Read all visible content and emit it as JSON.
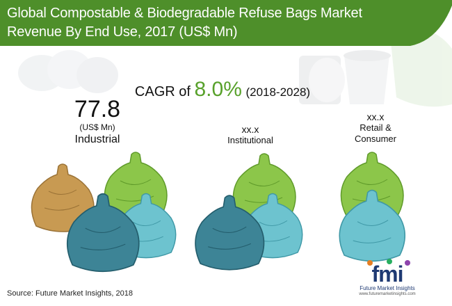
{
  "chart_data": {
    "type": "infographic",
    "title": "Global Compostable & Biodegradable Refuse Bags Market Revenue By End Use, 2017 (US$ Mn)",
    "cagr": {
      "prefix": "CAGR of",
      "value": "8.0%",
      "period": "(2018-2028)"
    },
    "categories": [
      "Industrial",
      "Institutional",
      "Retail & Consumer"
    ],
    "segments": [
      {
        "label": "Industrial",
        "value": "77.8",
        "unit": "(US$ Mn)"
      },
      {
        "label": "Institutional",
        "value": "xx.x"
      },
      {
        "label_line1": "Retail &",
        "label_line2": "Consumer",
        "value": "xx.x"
      }
    ]
  },
  "source": "Source: Future Market Insights, 2018",
  "logo": {
    "text": "fmi",
    "name": "Future Market Insights",
    "url": "www.futuremarketinsights.com"
  },
  "colors": {
    "banner": "#4e8f2a",
    "accent": "#58a12b",
    "bag_tan": "#c89a52",
    "bag_green": "#8cc64a",
    "bag_teal": "#3d8496",
    "bag_lightblue": "#6dc3cf"
  }
}
